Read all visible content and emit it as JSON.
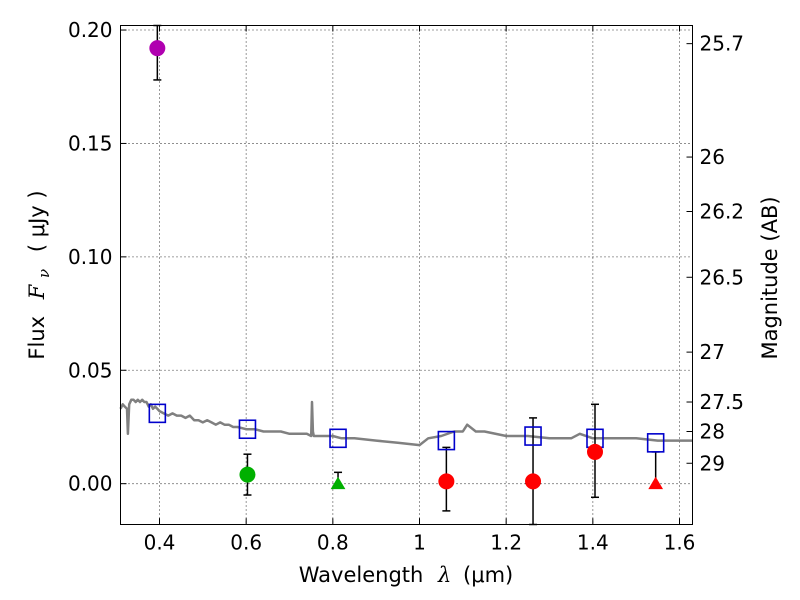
{
  "chart_data": {
    "type": "scatter",
    "xlabel": {
      "prefix": "Wavelength",
      "symbol": "λ",
      "unit": "(μm)"
    },
    "ylabel": {
      "prefix": "Flux",
      "symbol": "F",
      "subscript": "ν",
      "unit": "( μJy )"
    },
    "y2label": "Magnitude (AB)",
    "xlim": [
      0.31,
      1.63
    ],
    "ylim": [
      -0.018,
      0.202
    ],
    "xticks": [
      0.4,
      0.6,
      0.8,
      1.0,
      1.2,
      1.4,
      1.6
    ],
    "xtick_labels": [
      "0.4",
      "0.6",
      "0.8",
      "1",
      "1.2",
      "1.4",
      "1.6"
    ],
    "yticks": [
      0.0,
      0.05,
      0.1,
      0.15,
      0.2
    ],
    "ytick_labels": [
      "0.00",
      "0.05",
      "0.10",
      "0.15",
      "0.20"
    ],
    "magnitude_ticks": [
      {
        "label": "25.7",
        "flux": 0.194
      },
      {
        "label": "26",
        "flux": 0.144
      },
      {
        "label": "26.2",
        "flux": 0.12
      },
      {
        "label": "26.5",
        "flux": 0.091
      },
      {
        "label": "27",
        "flux": 0.058
      },
      {
        "label": "27.5",
        "flux": 0.036
      },
      {
        "label": "28",
        "flux": 0.023
      },
      {
        "label": "29",
        "flux": 0.009
      }
    ],
    "grid": true,
    "colors": {
      "template": "#808080",
      "model": "#0000cc",
      "magenta": "#b000b0",
      "green": "#00b000",
      "red": "#ff0000",
      "errorbar": "#000000",
      "grid": "#000000"
    },
    "template_spectrum": {
      "x": [
        0.31,
        0.315,
        0.32,
        0.325,
        0.327,
        0.33,
        0.335,
        0.34,
        0.345,
        0.35,
        0.355,
        0.36,
        0.365,
        0.37,
        0.375,
        0.38,
        0.385,
        0.39,
        0.395,
        0.4,
        0.41,
        0.42,
        0.43,
        0.44,
        0.45,
        0.46,
        0.47,
        0.48,
        0.49,
        0.5,
        0.51,
        0.52,
        0.53,
        0.54,
        0.55,
        0.56,
        0.57,
        0.58,
        0.6,
        0.62,
        0.64,
        0.66,
        0.68,
        0.7,
        0.72,
        0.74,
        0.75,
        0.752,
        0.754,
        0.756,
        0.76,
        0.78,
        0.8,
        0.82,
        0.85,
        0.9,
        0.95,
        1.0,
        1.02,
        1.05,
        1.08,
        1.1,
        1.11,
        1.13,
        1.15,
        1.2,
        1.25,
        1.3,
        1.35,
        1.37,
        1.4,
        1.45,
        1.5,
        1.55,
        1.6,
        1.63
      ],
      "y": [
        0.033,
        0.035,
        0.034,
        0.033,
        0.022,
        0.035,
        0.037,
        0.037,
        0.036,
        0.037,
        0.036,
        0.037,
        0.036,
        0.036,
        0.034,
        0.035,
        0.033,
        0.034,
        0.033,
        0.032,
        0.031,
        0.03,
        0.031,
        0.03,
        0.03,
        0.029,
        0.03,
        0.028,
        0.028,
        0.027,
        0.028,
        0.027,
        0.026,
        0.027,
        0.026,
        0.026,
        0.025,
        0.025,
        0.024,
        0.024,
        0.023,
        0.023,
        0.023,
        0.022,
        0.022,
        0.022,
        0.021,
        0.036,
        0.023,
        0.021,
        0.021,
        0.021,
        0.021,
        0.02,
        0.02,
        0.019,
        0.018,
        0.017,
        0.02,
        0.021,
        0.023,
        0.023,
        0.026,
        0.023,
        0.023,
        0.021,
        0.021,
        0.02,
        0.02,
        0.022,
        0.02,
        0.02,
        0.02,
        0.019,
        0.019,
        0.019
      ]
    },
    "model_points": [
      {
        "x": 0.395,
        "y": 0.031
      },
      {
        "x": 0.603,
        "y": 0.024
      },
      {
        "x": 0.812,
        "y": 0.02
      },
      {
        "x": 1.062,
        "y": 0.019
      },
      {
        "x": 1.262,
        "y": 0.021
      },
      {
        "x": 1.405,
        "y": 0.02
      },
      {
        "x": 1.545,
        "y": 0.018
      }
    ],
    "observed_points": [
      {
        "x": 0.395,
        "y": 0.192,
        "yerr_low": 0.014,
        "yerr_high": 0.01,
        "marker": "circle",
        "color": "magenta"
      },
      {
        "x": 0.603,
        "y": 0.004,
        "yerr_low": 0.009,
        "yerr_high": 0.009,
        "marker": "circle",
        "color": "green"
      },
      {
        "x": 0.812,
        "y": 0.0,
        "yerr_low": 0.0,
        "yerr_high": 0.005,
        "marker": "triangle",
        "color": "green"
      },
      {
        "x": 1.062,
        "y": 0.001,
        "yerr_low": 0.013,
        "yerr_high": 0.015,
        "marker": "circle",
        "color": "red"
      },
      {
        "x": 1.262,
        "y": 0.001,
        "yerr_low": 0.019,
        "yerr_high": 0.028,
        "marker": "circle",
        "color": "red"
      },
      {
        "x": 1.405,
        "y": 0.014,
        "yerr_low": 0.02,
        "yerr_high": 0.021,
        "marker": "circle",
        "color": "red"
      },
      {
        "x": 1.545,
        "y": 0.0,
        "yerr_low": 0.0,
        "yerr_high": 0.014,
        "marker": "triangle",
        "color": "red"
      }
    ]
  }
}
